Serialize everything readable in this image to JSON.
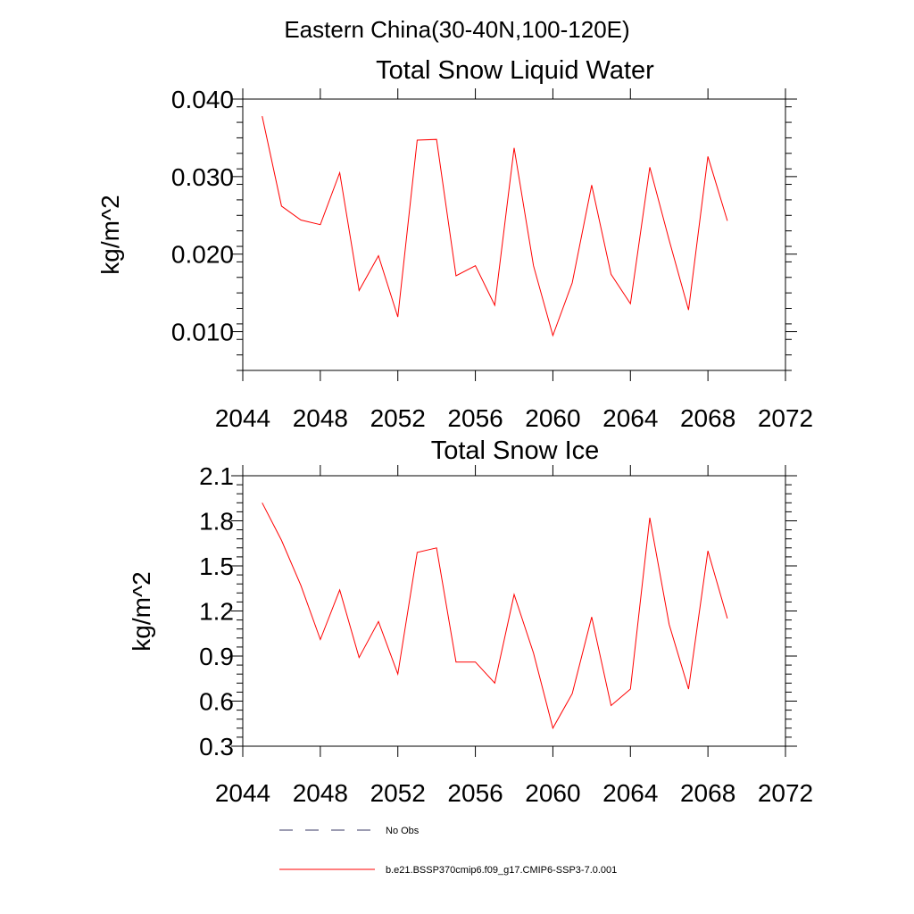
{
  "suptitle": "Eastern China(30-40N,100-120E)",
  "chart_data": [
    {
      "type": "line",
      "title": "Total Snow Liquid Water",
      "xlabel": "",
      "ylabel": "kg/m^2",
      "xlim": [
        2044,
        2072
      ],
      "ylim": [
        0.005,
        0.04
      ],
      "xticks": [
        2044,
        2048,
        2052,
        2056,
        2060,
        2064,
        2068,
        2072
      ],
      "xtick_labels": [
        "2044",
        "2048",
        "2052",
        "2056",
        "2060",
        "2064",
        "2068",
        "2072"
      ],
      "yticks": [
        0.01,
        0.02,
        0.03,
        0.04
      ],
      "ytick_labels": [
        "0.010",
        "0.020",
        "0.030",
        "0.040"
      ],
      "y_minor_step": 0.002,
      "grid": false,
      "series": [
        {
          "name": "b.e21.BSSP370cmip6.f09_g17.CMIP6-SSP3-7.0.001",
          "color": "#ff0000",
          "x": [
            2045,
            2046,
            2047,
            2048,
            2049,
            2050,
            2051,
            2052,
            2053,
            2054,
            2055,
            2056,
            2057,
            2058,
            2059,
            2060,
            2061,
            2062,
            2063,
            2064,
            2065,
            2066,
            2067,
            2068,
            2069
          ],
          "values": [
            0.0378,
            0.0262,
            0.0244,
            0.0238,
            0.0305,
            0.0153,
            0.0198,
            0.0119,
            0.0347,
            0.0348,
            0.0172,
            0.0185,
            0.0134,
            0.0337,
            0.0185,
            0.0095,
            0.0163,
            0.0289,
            0.0174,
            0.0136,
            0.0312,
            0.0218,
            0.0128,
            0.0326,
            0.0243
          ]
        }
      ]
    },
    {
      "type": "line",
      "title": "Total Snow Ice",
      "xlabel": "",
      "ylabel": "kg/m^2",
      "xlim": [
        2044,
        2072
      ],
      "ylim": [
        0.3,
        2.1
      ],
      "xticks": [
        2044,
        2048,
        2052,
        2056,
        2060,
        2064,
        2068,
        2072
      ],
      "xtick_labels": [
        "2044",
        "2048",
        "2052",
        "2056",
        "2060",
        "2064",
        "2068",
        "2072"
      ],
      "yticks": [
        0.3,
        0.6,
        0.9,
        1.2,
        1.5,
        1.8,
        2.1
      ],
      "ytick_labels": [
        "0.3",
        "0.6",
        "0.9",
        "1.2",
        "1.5",
        "1.8",
        "2.1"
      ],
      "y_minor_step": 0.06,
      "grid": false,
      "series": [
        {
          "name": "b.e21.BSSP370cmip6.f09_g17.CMIP6-SSP3-7.0.001",
          "color": "#ff0000",
          "x": [
            2045,
            2046,
            2047,
            2048,
            2049,
            2050,
            2051,
            2052,
            2053,
            2054,
            2055,
            2056,
            2057,
            2058,
            2059,
            2060,
            2061,
            2062,
            2063,
            2064,
            2065,
            2066,
            2067,
            2068,
            2069
          ],
          "values": [
            1.92,
            1.67,
            1.37,
            1.01,
            1.34,
            0.89,
            1.13,
            0.78,
            1.59,
            1.62,
            0.86,
            0.86,
            0.72,
            1.31,
            0.92,
            0.42,
            0.65,
            1.16,
            0.57,
            0.68,
            1.82,
            1.11,
            0.68,
            1.6,
            1.15
          ]
        }
      ]
    }
  ],
  "legend": {
    "placement": "bottom",
    "entries": [
      {
        "label": "No Obs",
        "color": "#3a3a66",
        "style": "dashed"
      },
      {
        "label": "b.e21.BSSP370cmip6.f09_g17.CMIP6-SSP3-7.0.001",
        "color": "#ff0000",
        "style": "solid"
      }
    ]
  }
}
